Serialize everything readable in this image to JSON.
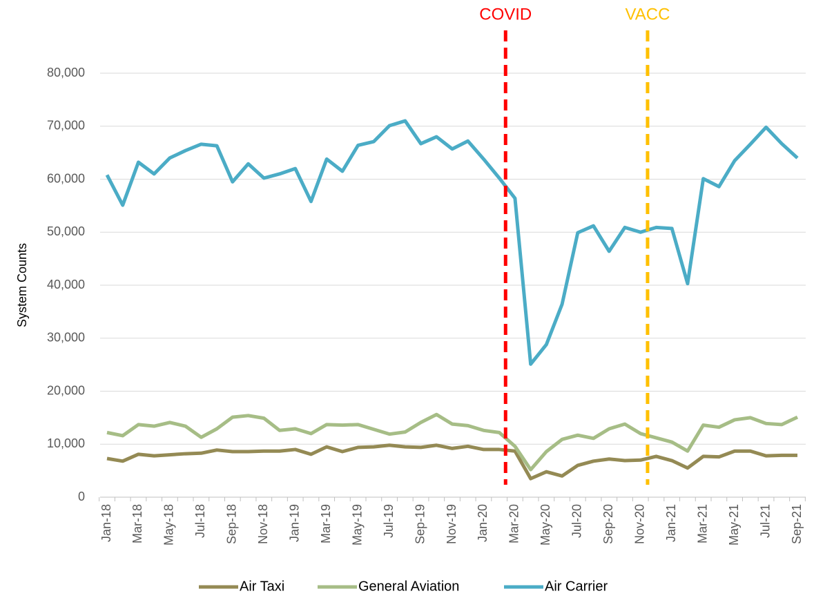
{
  "chart_data": {
    "type": "line",
    "y_label": "System Counts",
    "categories": [
      "Jan-18",
      null,
      "Mar-18",
      null,
      "May-18",
      null,
      "Jul-18",
      null,
      "Sep-18",
      null,
      "Nov-18",
      null,
      "Jan-19",
      null,
      "Mar-19",
      null,
      "May-19",
      null,
      "Jul-19",
      null,
      "Sep-19",
      null,
      "Nov-19",
      null,
      "Jan-20",
      null,
      "Mar-20",
      null,
      "May-20",
      null,
      "Jul-20",
      null,
      "Sep-20",
      null,
      "Nov-20",
      null,
      "Jan-21",
      null,
      "Mar-21",
      null,
      "May-21",
      null,
      "Jul-21",
      null,
      "Sep-21"
    ],
    "series": [
      {
        "name": "Air Taxi",
        "color": "#948a54",
        "values": [
          7300,
          6800,
          8100,
          7800,
          8000,
          8200,
          8300,
          8900,
          8600,
          8600,
          8700,
          8700,
          9000,
          8100,
          9500,
          8600,
          9400,
          9500,
          9800,
          9500,
          9400,
          9800,
          9200,
          9600,
          9000,
          9000,
          8700,
          3500,
          4800,
          4000,
          6000,
          6800,
          7200,
          6900,
          7000,
          7700,
          6900,
          5500,
          7700,
          7600,
          8700,
          8700,
          7800,
          7900,
          7900
        ]
      },
      {
        "name": "General Aviation",
        "color": "#a6bd86",
        "values": [
          12200,
          11600,
          13700,
          13400,
          14100,
          13400,
          11300,
          12900,
          15100,
          15400,
          14900,
          12600,
          12900,
          12000,
          13700,
          13600,
          13700,
          12800,
          11900,
          12300,
          14100,
          15600,
          13800,
          13500,
          12600,
          12200,
          9600,
          5200,
          8600,
          10900,
          11700,
          11100,
          12900,
          13800,
          12000,
          11200,
          10400,
          8700,
          13600,
          13200,
          14600,
          15000,
          13900,
          13700,
          15100
        ]
      },
      {
        "name": "Air Carrier",
        "color": "#4bacc6",
        "values": [
          60800,
          55100,
          63200,
          61000,
          64000,
          65400,
          66600,
          66300,
          59500,
          62900,
          60200,
          61000,
          62000,
          55800,
          63800,
          61500,
          66400,
          67100,
          70100,
          71000,
          66700,
          68000,
          65700,
          67200,
          63800,
          60200,
          56400,
          25100,
          28800,
          36400,
          49900,
          51200,
          46400,
          50900,
          50000,
          50900,
          50700,
          40300,
          60100,
          58600,
          63500,
          66600,
          69800,
          66700,
          64000
        ]
      }
    ],
    "annotations": [
      {
        "text": "COVID",
        "x": 25.4,
        "color": "#ff0000"
      },
      {
        "text": "VACC",
        "x": 34.45,
        "color": "#ffc000"
      }
    ],
    "ylim": [
      0,
      80000
    ],
    "yticks": [
      0,
      {
        "value": 10000,
        "label": "10,000"
      },
      {
        "value": 20000,
        "label": "20,000"
      },
      {
        "value": 30000,
        "label": "30,000"
      },
      {
        "value": 40000,
        "label": "40,000"
      },
      {
        "value": 50000,
        "label": "50,000"
      },
      {
        "value": 60000,
        "label": "60,000"
      },
      {
        "value": 70000,
        "label": "70,000"
      },
      {
        "value": 80000,
        "label": "80,000"
      }
    ],
    "grid": true,
    "legend": "bottom"
  }
}
